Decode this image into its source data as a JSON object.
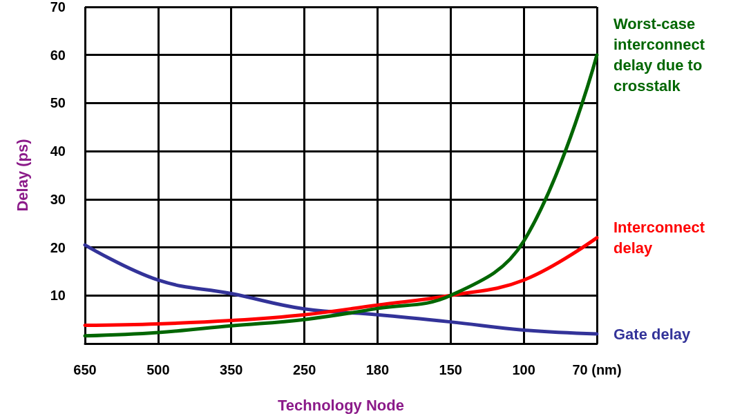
{
  "chart_data": {
    "type": "line",
    "xlabel": "Technology Node",
    "ylabel": "Delay (ps)",
    "categories": [
      "650",
      "500",
      "350",
      "250",
      "180",
      "150",
      "100",
      "70 (nm)"
    ],
    "series": [
      {
        "name": "Gate delay",
        "color": "#333399",
        "values": [
          20.5,
          13.2,
          10.4,
          7.2,
          6,
          4.5,
          2.8,
          2
        ]
      },
      {
        "name": "Interconnect delay",
        "color": "#ff0000",
        "values": [
          3.8,
          4.1,
          4.8,
          6,
          8,
          10,
          13.2,
          22
        ]
      },
      {
        "name": "Worst-case interconnect delay due to crosstalk",
        "color": "#006600",
        "values": [
          1.6,
          2.3,
          3.7,
          5,
          7.3,
          10,
          21.3,
          60
        ]
      }
    ],
    "ylim": [
      0,
      70
    ],
    "yticks": [
      10,
      20,
      30,
      40,
      50,
      60,
      70
    ],
    "grid": true,
    "marker": "none",
    "line_style": "solid"
  }
}
